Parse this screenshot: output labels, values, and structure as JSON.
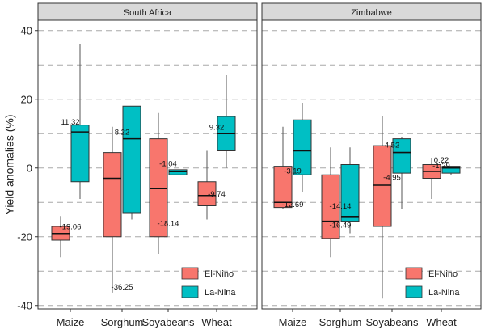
{
  "chart_data": {
    "type": "boxplot",
    "ylabel": "Yield anomalies (%)",
    "ylim": [
      -41,
      43
    ],
    "yticks": [
      -40,
      -20,
      0,
      20,
      40
    ],
    "categories": [
      "Maize",
      "Sorghum",
      "Soyabeans",
      "Wheat"
    ],
    "legend": {
      "position": "bottom-right",
      "entries": [
        {
          "name": "El-Nino",
          "color": "#f8766d"
        },
        {
          "name": "La-Nina",
          "color": "#00bfc4"
        }
      ]
    },
    "panels": [
      {
        "title": "South Africa",
        "series": [
          {
            "name": "El-Nino",
            "boxes": [
              {
                "category": "Maize",
                "min": -26,
                "q1": -21,
                "median": -19.06,
                "q3": -17,
                "max": -14
              },
              {
                "category": "Sorghum",
                "min": -36.25,
                "q1": -20,
                "median": -3,
                "q3": 4.5,
                "max": 12
              },
              {
                "category": "Soyabeans",
                "min": -25,
                "q1": -20,
                "median": -6,
                "q3": 8.5,
                "max": 16
              },
              {
                "category": "Wheat",
                "min": -15,
                "q1": -11,
                "median": -8,
                "q3": -4,
                "max": 5
              }
            ]
          },
          {
            "name": "La-Nina",
            "boxes": [
              {
                "category": "Maize",
                "min": -9,
                "q1": -4,
                "median": 10.5,
                "q3": 12.5,
                "max": 36
              },
              {
                "category": "Sorghum",
                "min": -15,
                "q1": -13,
                "median": 8.5,
                "q3": 18,
                "max": 18
              },
              {
                "category": "Soyabeans",
                "min": -2,
                "q1": -2,
                "median": -1.04,
                "q3": -0.5,
                "max": -0.5
              },
              {
                "category": "Wheat",
                "min": 0,
                "q1": 5,
                "median": 10,
                "q3": 15,
                "max": 27
              }
            ]
          }
        ],
        "annotations": [
          {
            "text": "-19.06",
            "category": "Maize",
            "y": -17
          },
          {
            "text": "11.32",
            "category": "Maize",
            "y": 13.5
          },
          {
            "text": "-36.25",
            "category": "Sorghum",
            "y": -34.5
          },
          {
            "text": "8.22",
            "category": "Sorghum",
            "y": 10.5
          },
          {
            "text": "-18.14",
            "category": "Soyabeans",
            "y": -16
          },
          {
            "text": "-1.04",
            "category": "Soyabeans",
            "y": 1.3
          },
          {
            "text": "9.32",
            "category": "Wheat",
            "y": 12
          },
          {
            "text": "-9.74",
            "category": "Wheat",
            "y": -7.5
          }
        ]
      },
      {
        "title": "Zimbabwe",
        "series": [
          {
            "name": "El-Nino",
            "boxes": [
              {
                "category": "Maize",
                "min": -12,
                "q1": -11.5,
                "median": -10,
                "q3": 0.5,
                "max": 12
              },
              {
                "category": "Sorghum",
                "min": -26,
                "q1": -20.5,
                "median": -15.5,
                "q3": -2,
                "max": 6
              },
              {
                "category": "Soyabeans",
                "min": -38,
                "q1": -17,
                "median": -5,
                "q3": 6.5,
                "max": 15
              },
              {
                "category": "Wheat",
                "min": -9,
                "q1": -3,
                "median": -1,
                "q3": 1,
                "max": 3
              }
            ]
          },
          {
            "name": "La-Nina",
            "boxes": [
              {
                "category": "Maize",
                "min": -7,
                "q1": -2,
                "median": 5,
                "q3": 14,
                "max": 19
              },
              {
                "category": "Sorghum",
                "min": -19,
                "q1": -15.5,
                "median": -14.14,
                "q3": 1,
                "max": 6
              },
              {
                "category": "Soyabeans",
                "min": -12,
                "q1": -1.5,
                "median": 4.52,
                "q3": 8.5,
                "max": 9
              },
              {
                "category": "Wheat",
                "min": -2,
                "q1": -1.5,
                "median": 0,
                "q3": 0.5,
                "max": 0.5
              }
            ]
          }
        ],
        "annotations": [
          {
            "text": "-3.19",
            "category": "Maize",
            "y": -0.8
          },
          {
            "text": "-12.69",
            "category": "Maize",
            "y": -10.5
          },
          {
            "text": "-14.14",
            "category": "Sorghum",
            "y": -11
          },
          {
            "text": "-16.49",
            "category": "Sorghum",
            "y": -16.5
          },
          {
            "text": "4.52",
            "category": "Soyabeans",
            "y": 6.8
          },
          {
            "text": "-4.95",
            "category": "Soyabeans",
            "y": -2.6
          },
          {
            "text": "0.22",
            "category": "Wheat",
            "y": 2.4
          },
          {
            "text": "-1.29",
            "category": "Wheat",
            "y": 0.8
          }
        ]
      }
    ]
  }
}
